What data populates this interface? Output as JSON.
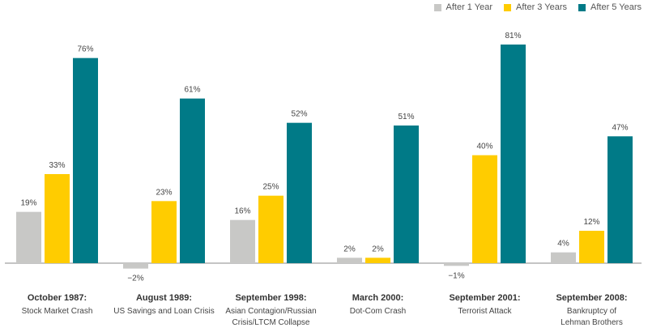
{
  "chart_data": {
    "type": "bar",
    "categories": [
      {
        "title": "October 1987:",
        "subtitle": [
          "Stock Market Crash"
        ]
      },
      {
        "title": "August 1989:",
        "subtitle": [
          "US Savings and Loan Crisis"
        ]
      },
      {
        "title": "September 1998:",
        "subtitle": [
          "Asian Contagion/Russian",
          "Crisis/LTCM Collapse"
        ]
      },
      {
        "title": "March 2000:",
        "subtitle": [
          "Dot-Com Crash"
        ]
      },
      {
        "title": "September 2001:",
        "subtitle": [
          "Terrorist Attack"
        ]
      },
      {
        "title": "September 2008:",
        "subtitle": [
          "Bankruptcy of",
          "Lehman Brothers"
        ]
      }
    ],
    "series": [
      {
        "name": "After 1 Year",
        "color": "#c8c8c6",
        "values": [
          19,
          -2,
          16,
          2,
          -1,
          4
        ],
        "labels": [
          "19%",
          "−2%",
          "16%",
          "2%",
          "−1%",
          "4%"
        ]
      },
      {
        "name": "After 3 Years",
        "color": "#ffcc00",
        "values": [
          33,
          23,
          25,
          2,
          40,
          12
        ],
        "labels": [
          "33%",
          "23%",
          "25%",
          "2%",
          "40%",
          "12%"
        ]
      },
      {
        "name": "After 5 Years",
        "color": "#007a87",
        "values": [
          76,
          61,
          52,
          51,
          81,
          47
        ],
        "labels": [
          "76%",
          "61%",
          "52%",
          "51%",
          "81%",
          "47%"
        ]
      }
    ],
    "ylim": [
      -2,
      81
    ],
    "legend_position": "top-right",
    "grid": false
  }
}
